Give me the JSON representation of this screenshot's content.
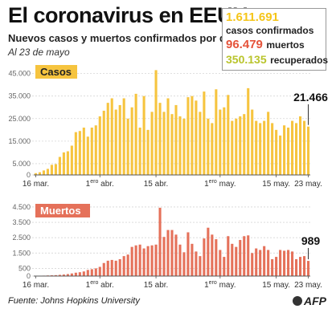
{
  "header": {
    "title": "El coronavirus en EEUU",
    "subtitle": "Nuevos casos y muertos confirmados por día",
    "date": "Al 23 de mayo"
  },
  "stats": {
    "confirmed_num": "1.611.691",
    "confirmed_lbl": "casos confirmados",
    "deaths_num": "96.479",
    "deaths_lbl": "muertos",
    "recovered_num": "350.135",
    "recovered_lbl": "recuperados",
    "colors": {
      "confirmed": "#f5c518",
      "deaths": "#e5533a",
      "recovered": "#b9c42b"
    }
  },
  "footer": {
    "source": "Fuente: Johns Hopkins University",
    "logo": "AFP"
  },
  "chart_data": [
    {
      "type": "bar",
      "name": "cases",
      "tag": "Casos",
      "color": "#f6c43f",
      "tag_bg": "#f6c43f",
      "tag_color": "#222",
      "ylim": [
        0,
        47000
      ],
      "yticks": [
        0,
        5000,
        15000,
        25000,
        35000,
        45000
      ],
      "ytick_labels": [
        "0",
        "5.000",
        "15.000",
        "25.000",
        "35.000",
        "45.000"
      ],
      "xtick_labels": [
        {
          "label": "16 mar.",
          "i": 0
        },
        {
          "label": "1ero abr.",
          "i": 16
        },
        {
          "label": "15 abr.",
          "i": 30
        },
        {
          "label": "1ero may.",
          "i": 46
        },
        {
          "label": "15 may.",
          "i": 60
        },
        {
          "label": "23 may.",
          "i": 68
        }
      ],
      "last_label": "21.466",
      "values": [
        800,
        1200,
        2000,
        2700,
        4500,
        4800,
        8000,
        10000,
        10500,
        13000,
        19000,
        19500,
        21000,
        17000,
        21000,
        22000,
        26000,
        28500,
        32000,
        34000,
        29000,
        31000,
        34000,
        25000,
        30000,
        36000,
        21000,
        35000,
        20000,
        28000,
        46500,
        32000,
        28000,
        34000,
        27000,
        31000,
        26000,
        25000,
        34500,
        35000,
        33000,
        28000,
        37000,
        25000,
        23000,
        38000,
        29000,
        30000,
        35500,
        24000,
        25000,
        26000,
        27000,
        38500,
        29000,
        24000,
        23000,
        24000,
        28000,
        23000,
        20000,
        17500,
        22000,
        21000,
        24000,
        23000,
        26000,
        24000,
        21466
      ]
    },
    {
      "type": "bar",
      "name": "deaths",
      "tag": "Muertos",
      "color": "#e5715a",
      "tag_bg": "#e5715a",
      "tag_color": "#fff",
      "ylim": [
        0,
        4600
      ],
      "yticks": [
        0,
        500,
        1500,
        2500,
        3500,
        4500
      ],
      "ytick_labels": [
        "0",
        "500",
        "1.500",
        "2.500",
        "3.500",
        "4.500"
      ],
      "xtick_labels": [
        {
          "label": "16 mar.",
          "i": 0
        },
        {
          "label": "1ero abr.",
          "i": 16
        },
        {
          "label": "15 abr.",
          "i": 30
        },
        {
          "label": "1ero may.",
          "i": 46
        },
        {
          "label": "15 may.",
          "i": 60
        },
        {
          "label": "23 may.",
          "i": 68
        }
      ],
      "last_label": "989",
      "values": [
        10,
        20,
        30,
        40,
        50,
        60,
        80,
        100,
        130,
        170,
        220,
        250,
        300,
        400,
        450,
        500,
        600,
        850,
        1000,
        1050,
        1000,
        1100,
        1300,
        1400,
        1900,
        2000,
        2050,
        1800,
        1950,
        2000,
        2050,
        4450,
        2550,
        3000,
        3000,
        2700,
        2050,
        1550,
        2850,
        2100,
        1600,
        1300,
        2450,
        3150,
        2700,
        2400,
        1700,
        1250,
        2600,
        2100,
        1900,
        2350,
        2600,
        2650,
        1500,
        1800,
        1700,
        1950,
        1700,
        1100,
        1250,
        1700,
        1650,
        1700,
        1600,
        1100,
        1250,
        1300,
        989
      ]
    }
  ]
}
